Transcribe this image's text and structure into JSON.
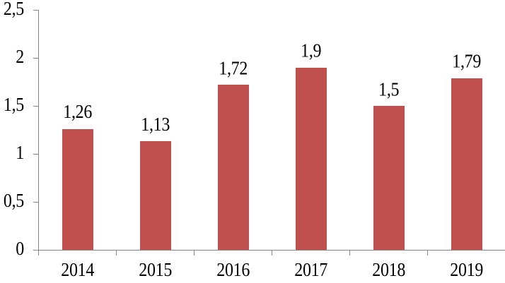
{
  "chart_data": {
    "type": "bar",
    "title": "",
    "xlabel": "",
    "ylabel": "",
    "categories": [
      "2014",
      "2015",
      "2016",
      "2017",
      "2018",
      "2019"
    ],
    "values": [
      1.26,
      1.13,
      1.72,
      1.9,
      1.5,
      1.79
    ],
    "value_labels": [
      "1,26",
      "1,13",
      "1,72",
      "1,9",
      "1,5",
      "1,79"
    ],
    "y_tick_values": [
      0,
      0.5,
      1,
      1.5,
      2,
      2.5
    ],
    "y_tick_labels": [
      "0",
      "0,5",
      "1",
      "1,5",
      "2",
      "2,5"
    ],
    "ylim": [
      0,
      2.5
    ],
    "grid": "off",
    "legend": "none",
    "decimal_separator": ",",
    "colors": {
      "bar_fill": "#c0504d",
      "axis_line": "#868686",
      "label_text": "#000000",
      "background": "#ffffff"
    }
  }
}
